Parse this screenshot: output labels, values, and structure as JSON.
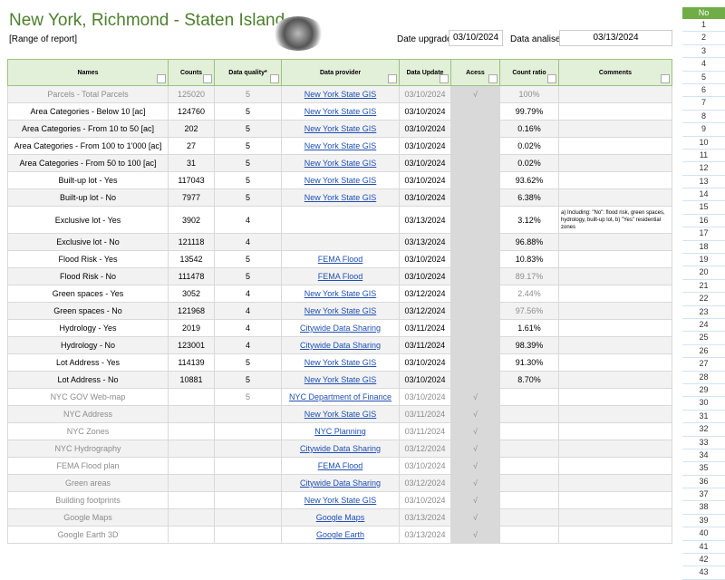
{
  "header": {
    "title": "New York, Richmond - Staten Island",
    "subtitle": "[Range of report]",
    "date_upgrade_label": "Date upgrade:",
    "date_upgrade": "03/10/2024",
    "date_analise_label": "Data analise:",
    "date_analise": "03/13/2024"
  },
  "table": {
    "columns": [
      "Names",
      "Counts",
      "Data quality*",
      "Data provider",
      "Data Update",
      "Acess",
      "Count ratio",
      "Comments"
    ],
    "rows": [
      [
        "Parcels - Total Parcels",
        "125020",
        "5",
        "New York State GIS",
        "03/10/2024",
        "√",
        "100%",
        null
      ],
      [
        "Area Categories - Below 10 [ac]",
        "124760",
        "5",
        "New York State GIS",
        "03/10/2024",
        null,
        "99.79%",
        null
      ],
      [
        "Area Categories - From 10 to 50 [ac]",
        "202",
        "5",
        "New York State GIS",
        "03/10/2024",
        null,
        "0.16%",
        null
      ],
      [
        "Area Categories - From 100 to 1'000 [ac]",
        "27",
        "5",
        "New York State GIS",
        "03/10/2024",
        null,
        "0.02%",
        null
      ],
      [
        "Area Categories - From 50 to 100 [ac]",
        "31",
        "5",
        "New York State GIS",
        "03/10/2024",
        null,
        "0.02%",
        null
      ],
      [
        "Built-up lot - Yes",
        "117043",
        "5",
        "New York State GIS",
        "03/10/2024",
        null,
        "93.62%",
        null
      ],
      [
        "Built-up lot - No",
        "7977",
        "5",
        "New York State GIS",
        "03/10/2024",
        null,
        "6.38%",
        null
      ],
      [
        "Exclusive lot - Yes",
        "3902",
        "4",
        null,
        "03/13/2024",
        null,
        "3.12%",
        "a) Including: \"No\": flood risk, green spaces, hydrology, built-up lot, b) \"Yes\" residential zones"
      ],
      [
        "Exclusive lot - No",
        "121118",
        "4",
        null,
        "03/13/2024",
        null,
        "96.88%",
        null
      ],
      [
        "Flood Risk - Yes",
        "13542",
        "5",
        "FEMA Flood",
        "03/10/2024",
        null,
        "10.83%",
        null
      ],
      [
        "Flood Risk - No",
        "111478",
        "5",
        "FEMA Flood",
        "03/10/2024",
        null,
        "89.17%",
        null
      ],
      [
        "Green spaces - Yes",
        "3052",
        "4",
        "New York State GIS",
        "03/12/2024",
        null,
        "2.44%",
        null
      ],
      [
        "Green spaces - No",
        "121968",
        "4",
        "New York State GIS",
        "03/12/2024",
        null,
        "97.56%",
        null
      ],
      [
        "Hydrology - Yes",
        "2019",
        "4",
        "Citywide Data Sharing",
        "03/11/2024",
        null,
        "1.61%",
        null
      ],
      [
        "Hydrology - No",
        "123001",
        "4",
        "Citywide Data Sharing",
        "03/11/2024",
        null,
        "98.39%",
        null
      ],
      [
        "Lot Address - Yes",
        "114139",
        "5",
        "New York State GIS",
        "03/10/2024",
        null,
        "91.30%",
        null
      ],
      [
        "Lot Address - No",
        "10881",
        "5",
        "New York State GIS",
        "03/10/2024",
        null,
        "8.70%",
        null
      ],
      [
        "NYC GOV Web-map",
        null,
        "5",
        "NYC Department of Finance",
        "03/10/2024",
        "√",
        null,
        null
      ],
      [
        "NYC Address",
        null,
        null,
        "New York State GIS",
        "03/11/2024",
        "√",
        null,
        null
      ],
      [
        "NYC Zones",
        null,
        null,
        "NYC Planning",
        "03/11/2024",
        "√",
        null,
        null
      ],
      [
        "NYC Hydrography",
        null,
        null,
        "Citywide Data Sharing",
        "03/12/2024",
        "√",
        null,
        null
      ],
      [
        "FEMA Flood plan",
        null,
        null,
        "FEMA Flood",
        "03/10/2024",
        "√",
        null,
        null
      ],
      [
        "Green areas",
        null,
        null,
        "Citywide Data Sharing",
        "03/12/2024",
        "√",
        null,
        null
      ],
      [
        "Building footprints",
        null,
        null,
        "New York State GIS",
        "03/10/2024",
        "√",
        null,
        null
      ],
      [
        "Google Maps",
        null,
        null,
        "Google Maps",
        "03/13/2024",
        "√",
        null,
        null
      ],
      [
        "Google Earth 3D",
        null,
        null,
        "Google Earth",
        "03/13/2024",
        "√",
        null,
        null
      ]
    ]
  },
  "row_index": {
    "header": "No",
    "numbers": [
      1,
      2,
      3,
      4,
      5,
      6,
      7,
      8,
      9,
      10,
      11,
      12,
      13,
      14,
      15,
      16,
      17,
      18,
      19,
      20,
      21,
      22,
      23,
      24,
      25,
      26,
      27,
      28,
      29,
      30,
      31,
      32,
      33,
      34,
      35,
      36,
      37,
      38,
      39,
      40,
      41,
      42,
      43
    ]
  }
}
